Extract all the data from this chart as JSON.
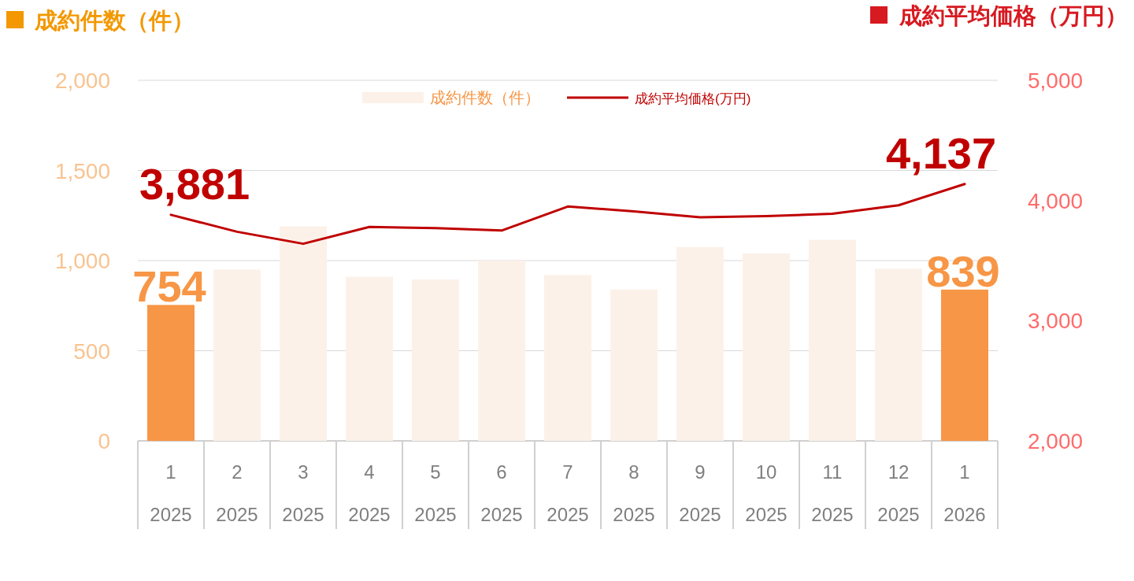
{
  "chart_data": {
    "type": "bar",
    "ylabel": "成約件数（件）",
    "y2label": "成約平均価格（万円）",
    "categories": [
      "1\n2025",
      "2\n2025",
      "3\n2025",
      "4\n2025",
      "5\n2025",
      "6\n2025",
      "7\n2025",
      "8\n2025",
      "9\n2025",
      "10\n2025",
      "11\n2025",
      "12\n2025",
      "1\n2026"
    ],
    "series": [
      {
        "name": "成約件数（件）",
        "color": "#fcf1e8",
        "colors": [
          "#f79646",
          "#fcf1e8",
          "#fcf1e8",
          "#fcf1e8",
          "#fcf1e8",
          "#fcf1e8",
          "#fcf1e8",
          "#fcf1e8",
          "#fcf1e8",
          "#fcf1e8",
          "#fcf1e8",
          "#fcf1e8",
          "#f79646"
        ],
        "values": [
          754,
          950,
          1190,
          910,
          895,
          1000,
          920,
          840,
          1075,
          1040,
          1115,
          955,
          839
        ],
        "value_labels": [
          "754",
          null,
          null,
          null,
          null,
          null,
          null,
          null,
          null,
          null,
          null,
          null,
          "839"
        ]
      },
      {
        "name": "成約平均価格(万円)",
        "type": "line",
        "axis": "y2",
        "color": "#c00000",
        "values": [
          3881,
          3740,
          3640,
          3780,
          3770,
          3750,
          3950,
          3910,
          3860,
          3870,
          3890,
          3960,
          4137
        ],
        "value_labels": [
          "3,881",
          null,
          null,
          null,
          null,
          null,
          null,
          null,
          null,
          null,
          null,
          null,
          "4,137"
        ]
      }
    ],
    "ylim": [
      0,
      2000
    ],
    "yticks": [
      {
        "value": 0,
        "label": "0"
      },
      {
        "value": 500,
        "label": "500"
      },
      {
        "value": 1000,
        "label": "1,000"
      },
      {
        "value": 1500,
        "label": "1,500"
      },
      {
        "value": 2000,
        "label": "2,000"
      }
    ],
    "y2lim": [
      2000,
      5000
    ],
    "y2ticks": [
      {
        "value": 2000,
        "label": "2,000"
      },
      {
        "value": 3000,
        "label": "3,000"
      },
      {
        "value": 4000,
        "label": "4,000"
      },
      {
        "value": 5000,
        "label": "5,000"
      }
    ],
    "grid": "y",
    "legend": "top"
  }
}
